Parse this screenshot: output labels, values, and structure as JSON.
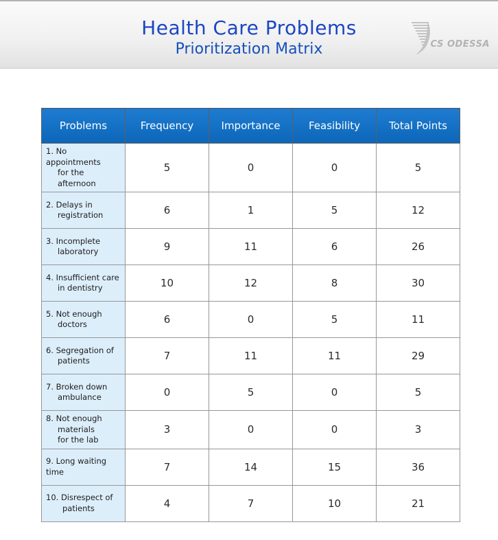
{
  "header": {
    "title": "Health Care Problems",
    "subtitle": "Prioritization Matrix",
    "logo": {
      "text": "CS ODESSA",
      "icon": "cs-odessa-swoosh-icon"
    }
  },
  "colors": {
    "title_blue": "#1b46c3",
    "subtitle_blue": "#164fbc",
    "table_header_blue_top": "#1e7cd0",
    "table_header_blue_bottom": "#0c66b9",
    "problem_cell_bg": "#ddeefb",
    "cell_border_gray": "#969696",
    "logo_gray": "#b3b3b3"
  },
  "table": {
    "columns": [
      "Problems",
      "Frequency",
      "Importance",
      "Feasibility",
      "Total Points"
    ],
    "rows": [
      {
        "problem_lines": [
          "1. No appointments",
          "for the afternoon"
        ],
        "hang": true,
        "frequency": "5",
        "importance": "0",
        "feasibility": "0",
        "total_points": "5"
      },
      {
        "problem_lines": [
          "2. Delays in",
          "registration"
        ],
        "hang": true,
        "frequency": "6",
        "importance": "1",
        "feasibility": "5",
        "total_points": "12"
      },
      {
        "problem_lines": [
          "3. Incomplete",
          "laboratory"
        ],
        "hang": true,
        "frequency": "9",
        "importance": "11",
        "feasibility": "6",
        "total_points": "26"
      },
      {
        "problem_lines": [
          "4. Insufficient care",
          "in dentistry"
        ],
        "hang": true,
        "frequency": "10",
        "importance": "12",
        "feasibility": "8",
        "total_points": "30"
      },
      {
        "problem_lines": [
          "5. Not enough",
          "doctors"
        ],
        "hang": true,
        "frequency": "6",
        "importance": "0",
        "feasibility": "5",
        "total_points": "11"
      },
      {
        "problem_lines": [
          "6. Segregation of",
          "patients"
        ],
        "hang": true,
        "frequency": "7",
        "importance": "11",
        "feasibility": "11",
        "total_points": "29"
      },
      {
        "problem_lines": [
          "7. Broken down",
          "ambulance"
        ],
        "hang": true,
        "frequency": "0",
        "importance": "5",
        "feasibility": "0",
        "total_points": "5"
      },
      {
        "problem_lines": [
          "8. Not enough",
          "materials",
          "for the lab"
        ],
        "hang": true,
        "frequency": "3",
        "importance": "0",
        "feasibility": "0",
        "total_points": "3"
      },
      {
        "problem_lines": [
          "9. Long waiting",
          "time"
        ],
        "hang": false,
        "frequency": "7",
        "importance": "14",
        "feasibility": "15",
        "total_points": "36"
      },
      {
        "problem_lines": [
          "10. Disrespect of",
          "patients"
        ],
        "hang": true,
        "frequency": "4",
        "importance": "7",
        "feasibility": "10",
        "total_points": "21"
      }
    ]
  },
  "chart_data": {
    "type": "table",
    "title": "Health Care Problems",
    "subtitle": "Prioritization Matrix",
    "columns": [
      "Problems",
      "Frequency",
      "Importance",
      "Feasibility",
      "Total Points"
    ],
    "rows": [
      [
        "1. No appointments for the afternoon",
        5,
        0,
        0,
        5
      ],
      [
        "2. Delays in registration",
        6,
        1,
        5,
        12
      ],
      [
        "3. Incomplete laboratory",
        9,
        11,
        6,
        26
      ],
      [
        "4. Insufficient care in dentistry",
        10,
        12,
        8,
        30
      ],
      [
        "5. Not enough doctors",
        6,
        0,
        5,
        11
      ],
      [
        "6. Segregation of patients",
        7,
        11,
        11,
        29
      ],
      [
        "7. Broken down ambulance",
        0,
        5,
        0,
        5
      ],
      [
        "8. Not enough materials for the lab",
        3,
        0,
        0,
        3
      ],
      [
        "9. Long waiting time",
        7,
        14,
        15,
        36
      ],
      [
        "10. Disrespect of patients",
        4,
        7,
        10,
        21
      ]
    ]
  }
}
